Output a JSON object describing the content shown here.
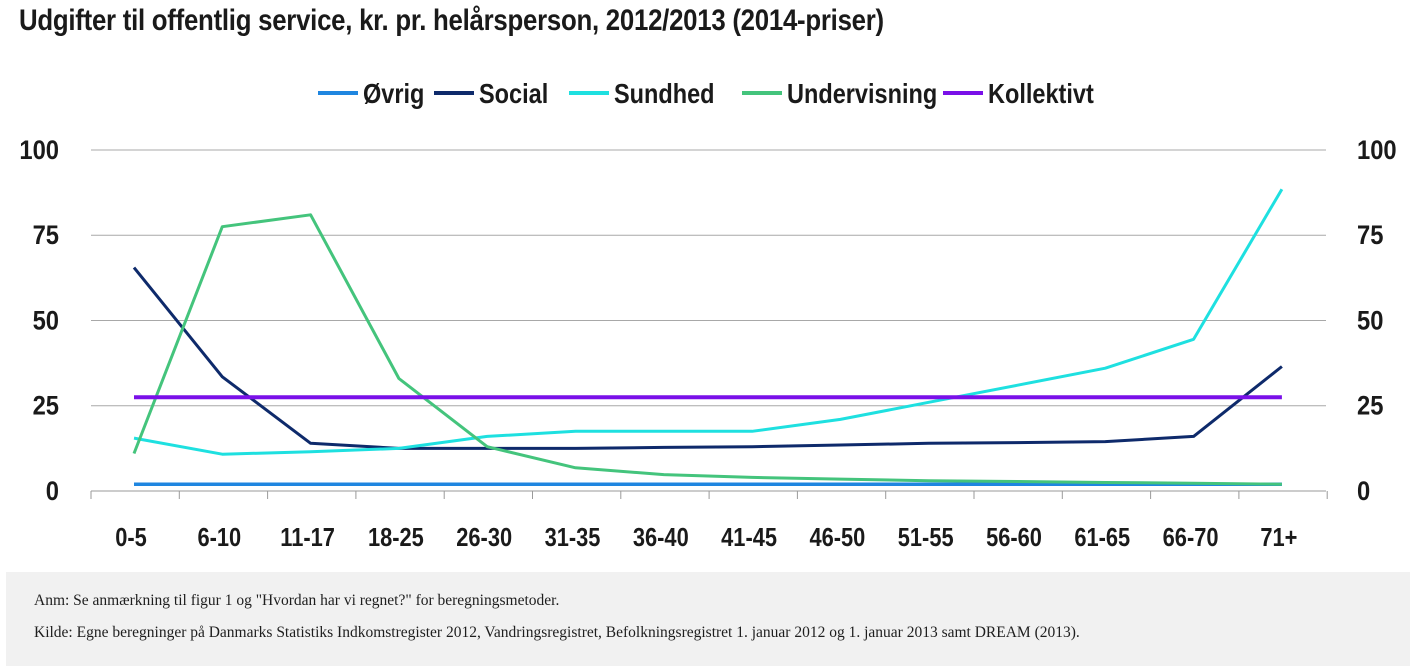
{
  "title": "Udgifter til offentlig service, kr. pr. helårsperson, 2012/2013 (2014-priser)",
  "notes": {
    "anm": "Anm: Se anmærkning til figur 1 og \"Hvordan har vi regnet?\" for beregningsmetoder.",
    "kilde": "Kilde: Egne beregninger på Danmarks Statistiks Indkomstregister 2012, Vandringsregistret, Befolkningsregistret 1. januar 2012 og 1. januar 2013 samt DREAM (2013)."
  },
  "chart_data": {
    "type": "line",
    "title": "Udgifter til offentlig service, kr. pr. helårsperson, 2012/2013 (2014-priser)",
    "categories": [
      "0-5",
      "6-10",
      "11-17",
      "18-25",
      "26-30",
      "31-35",
      "36-40",
      "41-45",
      "46-50",
      "51-55",
      "56-60",
      "61-65",
      "66-70",
      "71+"
    ],
    "ylim": [
      0,
      100
    ],
    "yticks": [
      0,
      25,
      50,
      75,
      100
    ],
    "y_axis_both_sides": true,
    "grid": true,
    "legend_position": "top",
    "series": [
      {
        "name": "Øvrig",
        "color": "#1f86e0",
        "width": 3.5,
        "values": [
          2,
          2,
          2,
          2,
          2,
          2,
          2,
          2,
          2,
          2,
          2,
          2,
          2,
          2
        ]
      },
      {
        "name": "Social",
        "color": "#0e2a6b",
        "width": 3,
        "values": [
          65.5,
          33.5,
          14,
          12.5,
          12.5,
          12.5,
          12.8,
          13,
          13.5,
          14,
          14.2,
          14.5,
          16,
          36.5
        ]
      },
      {
        "name": "Sundhed",
        "color": "#1ee0e0",
        "width": 3,
        "values": [
          15.5,
          10.8,
          11.5,
          12.5,
          16,
          17.5,
          17.5,
          17.5,
          21,
          26,
          31,
          36,
          44.5,
          88.5
        ]
      },
      {
        "name": "Undervisning",
        "color": "#44c47c",
        "width": 3,
        "values": [
          11,
          77.5,
          81,
          33,
          13,
          6.8,
          4.8,
          4,
          3.5,
          3,
          2.8,
          2.5,
          2.3,
          2
        ]
      },
      {
        "name": "Kollektivt",
        "color": "#7a10e8",
        "width": 4,
        "values": [
          27.5,
          27.5,
          27.5,
          27.5,
          27.5,
          27.5,
          27.5,
          27.5,
          27.5,
          27.5,
          27.5,
          27.5,
          27.5,
          27.5
        ]
      }
    ]
  }
}
